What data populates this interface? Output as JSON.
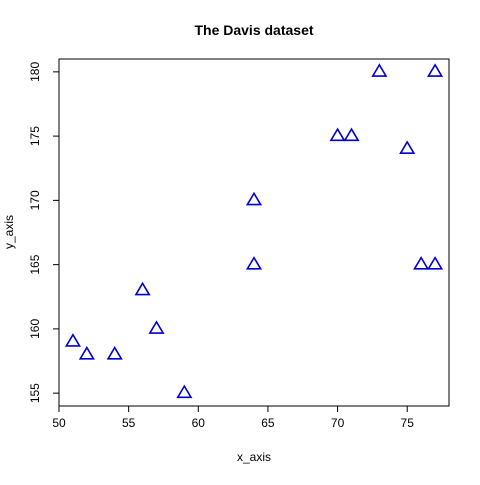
{
  "chart_data": {
    "type": "scatter",
    "title": "The Davis dataset",
    "xlabel": "x_axis",
    "ylabel": "y_axis",
    "xlim": [
      50,
      78
    ],
    "ylim": [
      154,
      181
    ],
    "x_ticks": [
      50,
      55,
      60,
      65,
      70,
      75
    ],
    "y_ticks": [
      155,
      160,
      165,
      170,
      175,
      180
    ],
    "grid": false,
    "marker": "triangle-open",
    "marker_color": "#0000cc",
    "points": [
      {
        "x": 51,
        "y": 159
      },
      {
        "x": 52,
        "y": 158
      },
      {
        "x": 54,
        "y": 158
      },
      {
        "x": 56,
        "y": 163
      },
      {
        "x": 57,
        "y": 160
      },
      {
        "x": 59,
        "y": 155
      },
      {
        "x": 64,
        "y": 170
      },
      {
        "x": 64,
        "y": 165
      },
      {
        "x": 70,
        "y": 175
      },
      {
        "x": 71,
        "y": 175
      },
      {
        "x": 73,
        "y": 180
      },
      {
        "x": 75,
        "y": 174
      },
      {
        "x": 76,
        "y": 165
      },
      {
        "x": 77,
        "y": 180
      },
      {
        "x": 77,
        "y": 165
      }
    ]
  }
}
